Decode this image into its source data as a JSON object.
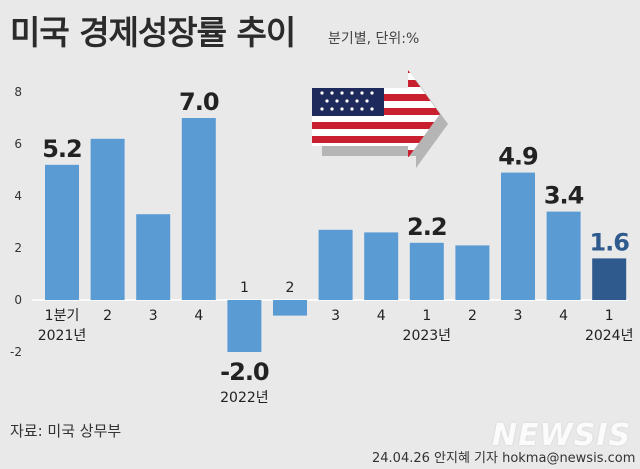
{
  "title": "미국 경제성장률 추이",
  "subtitle": "분기별, 단위:%",
  "source": "자료: 미국 상무부",
  "credit": "24.04.26 안지혜 기자 hokma@newsis.com",
  "watermark": "NEWSIS",
  "colors": {
    "background": "#e9e9e9",
    "bar": "#5a9bd3",
    "bar_highlight": "#2e5a8e",
    "text": "#222222"
  },
  "chart_data": {
    "type": "bar",
    "title": "미국 경제성장률 추이",
    "ylim": [
      -2,
      8
    ],
    "yticks": [
      -2,
      0,
      2,
      4,
      6,
      8
    ],
    "ytick_labels": [
      "-2",
      "0",
      "2",
      "4",
      "6",
      "8"
    ],
    "grid": false,
    "categories": [
      "1분기",
      "2",
      "3",
      "4",
      "1",
      "2",
      "3",
      "4",
      "1",
      "2",
      "3",
      "4",
      "1"
    ],
    "year_labels": [
      {
        "index": 0,
        "text": "2021년"
      },
      {
        "index": 4,
        "text": "2022년"
      },
      {
        "index": 8,
        "text": "2023년"
      },
      {
        "index": 12,
        "text": "2024년"
      }
    ],
    "values": [
      5.2,
      6.2,
      3.3,
      7.0,
      -2.0,
      -0.6,
      2.7,
      2.6,
      2.2,
      2.1,
      4.9,
      3.4,
      1.6
    ],
    "value_labels": [
      {
        "index": 0,
        "text": "5.2"
      },
      {
        "index": 3,
        "text": "7.0"
      },
      {
        "index": 4,
        "text": "-2.0"
      },
      {
        "index": 8,
        "text": "2.2"
      },
      {
        "index": 10,
        "text": "4.9"
      },
      {
        "index": 11,
        "text": "3.4"
      },
      {
        "index": 12,
        "text": "1.6"
      }
    ],
    "highlight_index": 12
  }
}
